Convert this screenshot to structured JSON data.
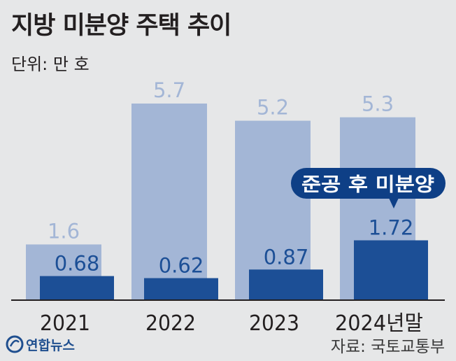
{
  "title": "지방 미분양 주택 추이",
  "unit_label": "단위: 만 호",
  "source": "자료: 국토교통부",
  "logo_text": "연합뉴스",
  "colors": {
    "total_bar": "#a3b6d6",
    "total_label": "#a3b6d6",
    "completed_bar": "#1c4f96",
    "completed_label": "#1c4f96",
    "callout_bg": "#0e3f86",
    "axis": "#231f20"
  },
  "chart_data": {
    "type": "bar",
    "title": "지방 미분양 주택 추이",
    "ylabel": "단위: 만 호",
    "categories": [
      "2021",
      "2022",
      "2023",
      "2024년말"
    ],
    "series": [
      {
        "values": [
          1.6,
          5.7,
          5.2,
          5.3
        ]
      },
      {
        "name": "준공 후 미분양",
        "values": [
          0.68,
          0.62,
          0.87,
          1.72
        ]
      }
    ],
    "value_labels": {
      "total": [
        "1.6",
        "5.7",
        "5.2",
        "5.3"
      ],
      "completed": [
        "0.68",
        "0.62",
        "0.87",
        "1.72"
      ]
    },
    "callout": "준공 후 미분양",
    "ylim": [
      0,
      5.7
    ],
    "grid": false
  }
}
